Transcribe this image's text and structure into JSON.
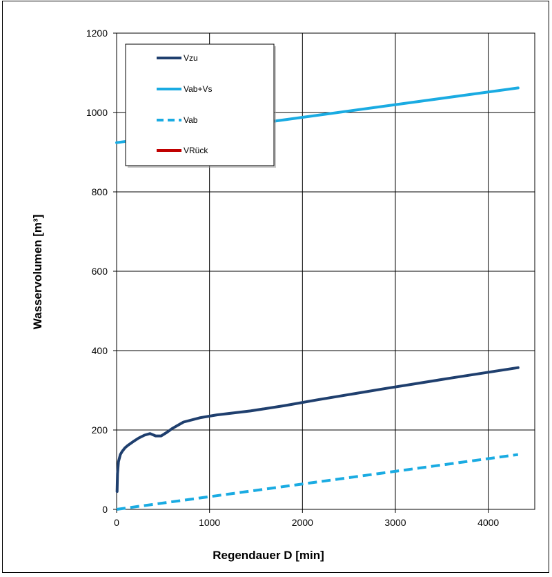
{
  "chart_data": {
    "type": "line",
    "xlabel": "Regendauer D [min]",
    "ylabel": "Wasservolumen [m³]",
    "xlim": [
      0,
      4500
    ],
    "ylim": [
      0,
      1200
    ],
    "x_ticks": [
      0,
      1000,
      2000,
      3000,
      4000
    ],
    "y_ticks": [
      0,
      200,
      400,
      600,
      800,
      1000,
      1200
    ],
    "grid": true,
    "legend_position": "top-left",
    "series": [
      {
        "name": "Vzu",
        "color": "#1f3f6e",
        "dash": "solid",
        "x": [
          5,
          10,
          20,
          40,
          60,
          90,
          120,
          180,
          240,
          300,
          360,
          420,
          480,
          540,
          600,
          720,
          900,
          1080,
          1440,
          1800,
          2160,
          2880,
          3600,
          4320
        ],
        "y": [
          45,
          90,
          120,
          138,
          146,
          155,
          161,
          171,
          180,
          187,
          191,
          185,
          185,
          194,
          204,
          220,
          231,
          238,
          248,
          261,
          276,
          304,
          331,
          357
        ]
      },
      {
        "name": "Vab+Vs",
        "color": "#1aabe2",
        "dash": "solid",
        "x": [
          0,
          4320
        ],
        "y": [
          924,
          1062
        ]
      },
      {
        "name": "Vab",
        "color": "#1aabe2",
        "dash": "dashed",
        "x": [
          0,
          4320
        ],
        "y": [
          0,
          138
        ]
      },
      {
        "name": "VRück",
        "color": "#c00000",
        "dash": "solid",
        "x": [],
        "y": []
      }
    ]
  }
}
